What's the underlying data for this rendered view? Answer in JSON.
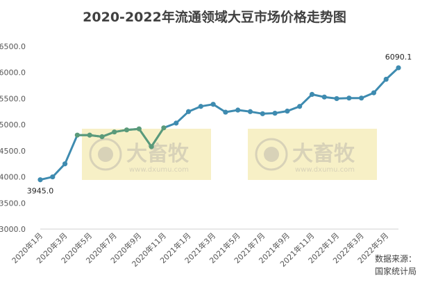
{
  "chart_data": {
    "type": "line",
    "title": "2020-2022年流通领域大豆市场价格走势图",
    "x": [
      "2020年1月",
      "2020年2月",
      "2020年3月",
      "2020年4月",
      "2020年5月",
      "2020年6月",
      "2020年7月",
      "2020年8月",
      "2020年9月",
      "2020年10月",
      "2020年11月",
      "2020年12月",
      "2021年1月",
      "2021年2月",
      "2021年3月",
      "2021年4月",
      "2021年5月",
      "2021年6月",
      "2021年7月",
      "2021年8月",
      "2021年9月",
      "2021年10月",
      "2021年11月",
      "2021年12月",
      "2022年1月",
      "2022年2月",
      "2022年3月",
      "2022年4月",
      "2022年5月",
      "2022年6月"
    ],
    "x_tick_labels": [
      "2020年1月",
      "2020年3月",
      "2020年5月",
      "2020年7月",
      "2020年9月",
      "2020年11月",
      "2021年1月",
      "2021年3月",
      "2021年5月",
      "2021年7月",
      "2021年9月",
      "2021年11月",
      "2022年1月",
      "2022年3月",
      "2022年5月"
    ],
    "series": [
      {
        "values": [
          3945.0,
          4000,
          4250,
          4800,
          4800,
          4770,
          4860,
          4900,
          4920,
          4580,
          4940,
          5030,
          5250,
          5350,
          5390,
          5240,
          5280,
          5250,
          5210,
          5220,
          5260,
          5350,
          5580,
          5530,
          5500,
          5510,
          5510,
          5610,
          5870,
          6090.1
        ],
        "color": "#3e8bb0"
      }
    ],
    "highlight_segment": {
      "from_index": 3,
      "to_index": 10,
      "color": "#5a9a7a"
    },
    "data_labels": [
      {
        "index": 0,
        "text": "3945.0"
      },
      {
        "index": 29,
        "text": "6090.1"
      }
    ],
    "y_ticks": [
      "3000.0",
      "3500.0",
      "4000.0",
      "4500.0",
      "5000.0",
      "5500.0",
      "6000.0",
      "6500.0"
    ],
    "ylim": [
      3000,
      6500
    ],
    "grid": false,
    "xlabel": "",
    "ylabel": ""
  },
  "watermark": {
    "text": "大畜牧",
    "sub": "www.dxumu.com",
    "color": "#f7f0c6"
  },
  "source_lines": [
    "数据来源：",
    "国家统计局"
  ]
}
